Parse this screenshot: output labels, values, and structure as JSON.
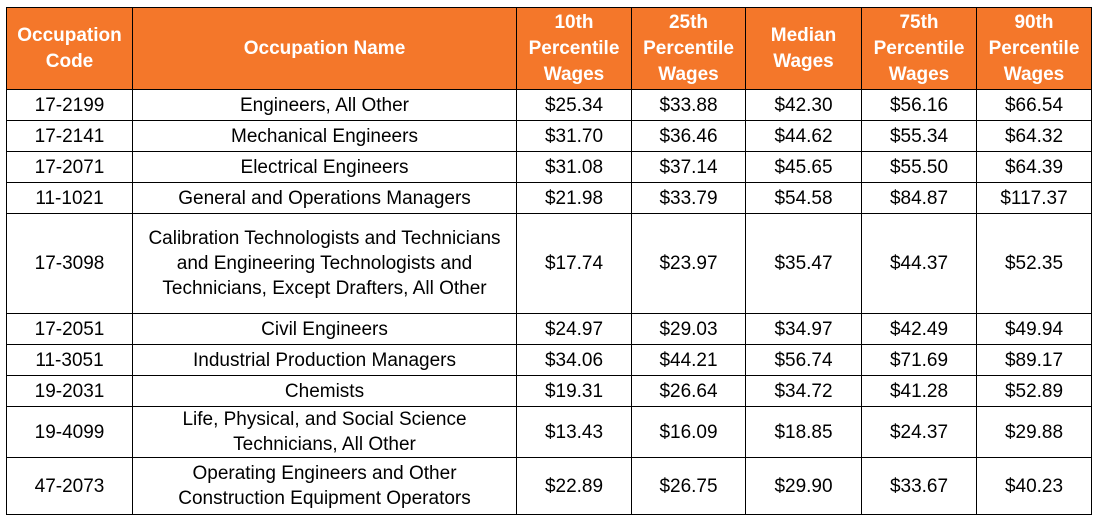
{
  "table": {
    "headers": {
      "code": "Occupation Code",
      "name": "Occupation Name",
      "p10": "10th Percentile Wages",
      "p25": "25th Percentile Wages",
      "median": "Median Wages",
      "p75": "75th Percentile Wages",
      "p90": "90th Percentile Wages"
    },
    "rows": [
      {
        "code": "17-2199",
        "name": "Engineers, All Other",
        "p10": "$25.34",
        "p25": "$33.88",
        "median": "$42.30",
        "p75": "$56.16",
        "p90": "$66.54"
      },
      {
        "code": "17-2141",
        "name": "Mechanical Engineers",
        "p10": "$31.70",
        "p25": "$36.46",
        "median": "$44.62",
        "p75": "$55.34",
        "p90": "$64.32"
      },
      {
        "code": "17-2071",
        "name": "Electrical Engineers",
        "p10": "$31.08",
        "p25": "$37.14",
        "median": "$45.65",
        "p75": "$55.50",
        "p90": "$64.39"
      },
      {
        "code": "11-1021",
        "name": "General and Operations Managers",
        "p10": "$21.98",
        "p25": "$33.79",
        "median": "$54.58",
        "p75": "$84.87",
        "p90": "$117.37"
      },
      {
        "code": "17-3098",
        "name": "Calibration Technologists and Technicians and Engineering Technologists and Technicians, Except Drafters, All Other",
        "p10": "$17.74",
        "p25": "$23.97",
        "median": "$35.47",
        "p75": "$44.37",
        "p90": "$52.35"
      },
      {
        "code": "17-2051",
        "name": "Civil Engineers",
        "p10": "$24.97",
        "p25": "$29.03",
        "median": "$34.97",
        "p75": "$42.49",
        "p90": "$49.94"
      },
      {
        "code": "11-3051",
        "name": "Industrial Production Managers",
        "p10": "$34.06",
        "p25": "$44.21",
        "median": "$56.74",
        "p75": "$71.69",
        "p90": "$89.17"
      },
      {
        "code": "19-2031",
        "name": "Chemists",
        "p10": "$19.31",
        "p25": "$26.64",
        "median": "$34.72",
        "p75": "$41.28",
        "p90": "$52.89"
      },
      {
        "code": "19-4099",
        "name": "Life, Physical, and Social Science Technicians, All Other",
        "p10": "$13.43",
        "p25": "$16.09",
        "median": "$18.85",
        "p75": "$24.37",
        "p90": "$29.88"
      },
      {
        "code": "47-2073",
        "name": "Operating Engineers and Other Construction Equipment Operators",
        "p10": "$22.89",
        "p25": "$26.75",
        "median": "$29.90",
        "p75": "$33.67",
        "p90": "$40.23"
      }
    ]
  }
}
